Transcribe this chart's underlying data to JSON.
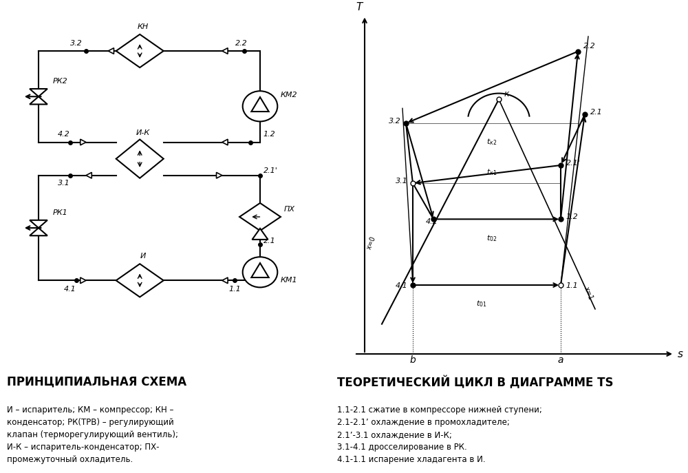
{
  "bg_color": "#ffffff",
  "left_title": "ПРИНЦИПИАЛЬНАЯ СХЕМА",
  "right_title": "ТЕОРЕТИЧЕСКИЙ ЦИКЛ В ДИАГРАММЕ TS",
  "left_desc": "И – испаритель; КМ – компрессор; КН –\nконденсатор; РК(ТРВ) – регулирующий\nклапан (терморегулирующий вентиль);\nИ-К – испаритель-конденсатор; ПХ-\nпромежуточный охладитель.",
  "right_desc": "1.1-2.1 сжатие в компрессоре нижней ступени;\n2.1-2.1’ охлаждение в промохладителе;\n2.1’-3.1 охлаждение в И-К;\n3.1-4.1 дросселирование в РК.\n4.1-1.1 испарение хладагента в И."
}
